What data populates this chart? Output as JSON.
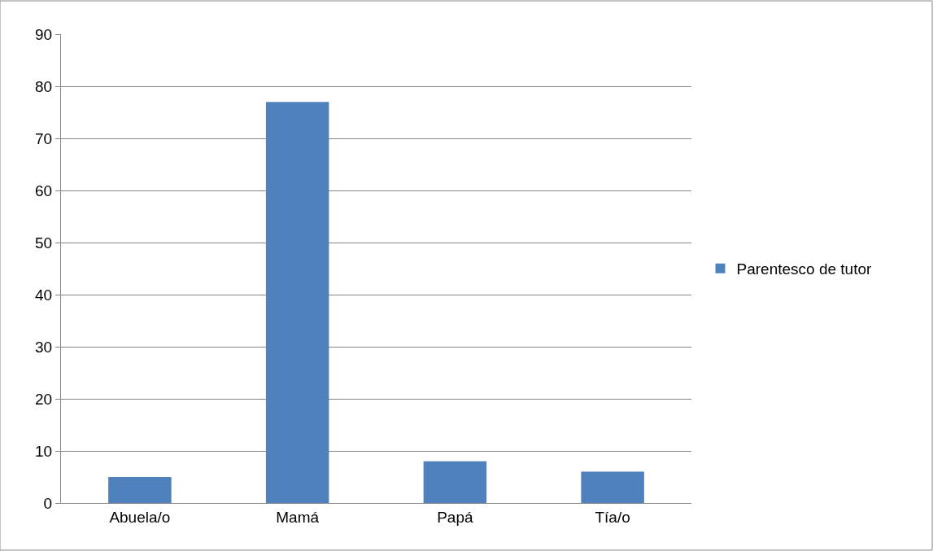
{
  "chart_data": {
    "type": "bar",
    "categories": [
      "Abuela/o",
      "Mamá",
      "Papá",
      "Tía/o"
    ],
    "series": [
      {
        "name": "Parentesco de tutor",
        "color": "#4f81bd",
        "values": [
          5,
          77,
          8,
          6
        ]
      }
    ],
    "ylim": [
      0,
      90
    ],
    "yticks": [
      0,
      10,
      20,
      30,
      40,
      50,
      60,
      70,
      80,
      90
    ],
    "grid": "y",
    "legend": "right"
  }
}
